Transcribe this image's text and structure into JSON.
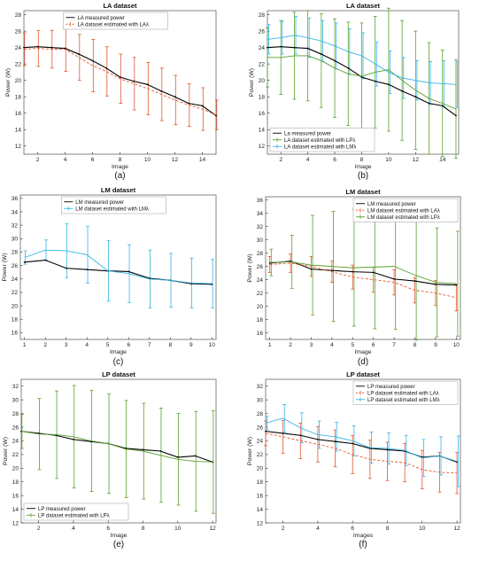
{
  "colors": {
    "measured": "#000000",
    "la": "#e4572e",
    "lp": "#5aa02c",
    "lm": "#35b5e8",
    "axis": "#222222",
    "box": "#666666"
  },
  "chart_data": [
    {
      "caption": "(a)",
      "type": "line",
      "title": "LA dataset",
      "xlabel": "Image",
      "ylabel": "Power (W)",
      "xlim": [
        1,
        15
      ],
      "ylim": [
        11,
        28.5
      ],
      "xticks": [
        2,
        4,
        6,
        8,
        10,
        12,
        14
      ],
      "yticks": [
        12,
        14,
        16,
        18,
        20,
        22,
        24,
        26,
        28
      ],
      "legend_position": "top-center",
      "x": [
        1,
        2,
        3,
        4,
        5,
        6,
        7,
        8,
        9,
        10,
        11,
        12,
        13,
        14,
        15
      ],
      "series": [
        {
          "name": "LA measured power",
          "color_key": "measured",
          "style": "solid",
          "marker": "dot",
          "values": [
            24.0,
            24.1,
            24.0,
            23.9,
            23.2,
            22.4,
            21.5,
            20.4,
            19.9,
            19.5,
            18.7,
            18.0,
            17.2,
            16.9,
            15.7
          ]
        },
        {
          "name": "LA dataset estimated with LAλ",
          "color_key": "la",
          "style": "dashed",
          "marker": "none",
          "values": [
            23.8,
            23.9,
            23.8,
            23.8,
            22.8,
            21.8,
            21.1,
            20.2,
            19.6,
            19.0,
            18.3,
            17.6,
            17.0,
            16.5,
            15.8
          ],
          "errors": [
            2.0,
            2.2,
            2.3,
            2.7,
            2.8,
            3.2,
            3.0,
            3.0,
            3.2,
            3.2,
            3.2,
            3.0,
            2.6,
            2.6,
            1.8
          ]
        }
      ]
    },
    {
      "caption": "(b)",
      "type": "line",
      "title": "LA dataset",
      "xlabel": "Image",
      "ylabel": "Power (W)",
      "xlim": [
        1,
        15.2
      ],
      "ylim": [
        11,
        28.5
      ],
      "xticks": [
        2,
        4,
        6,
        8,
        10,
        12,
        14
      ],
      "yticks": [
        12,
        14,
        16,
        18,
        20,
        22,
        24,
        26,
        28
      ],
      "legend_position": "bottom-left",
      "x": [
        1,
        2,
        3,
        4,
        5,
        6,
        7,
        8,
        9,
        10,
        11,
        12,
        13,
        14,
        15
      ],
      "series": [
        {
          "name": "La measured power",
          "color_key": "measured",
          "style": "solid",
          "marker": "dot",
          "values": [
            24.0,
            24.1,
            24.0,
            23.9,
            23.2,
            22.4,
            21.5,
            20.4,
            19.9,
            19.5,
            18.7,
            18.0,
            17.2,
            16.9,
            15.7
          ]
        },
        {
          "name": "LA dataset estimated with LPλ",
          "color_key": "lp",
          "style": "solid",
          "marker": "none",
          "values": [
            22.8,
            22.8,
            23.0,
            23.0,
            22.4,
            21.5,
            20.8,
            20.5,
            21.0,
            21.3,
            20.0,
            18.8,
            17.8,
            17.2,
            16.5
          ],
          "errors": [
            3.6,
            4.5,
            5.3,
            5.5,
            5.7,
            6.0,
            6.3,
            6.5,
            6.8,
            7.5,
            7.3,
            7.2,
            6.8,
            6.5,
            6.0
          ]
        },
        {
          "name": "LA dataset estimated with LMλ",
          "color_key": "lm",
          "style": "solid",
          "marker": "none",
          "values": [
            25.0,
            25.2,
            25.5,
            25.2,
            24.8,
            24.2,
            23.5,
            23.0,
            22.0,
            21.0,
            20.3,
            20.0,
            19.7,
            19.6,
            19.5
          ],
          "errors": [
            1.8,
            2.0,
            2.3,
            2.4,
            2.5,
            2.8,
            2.8,
            2.8,
            2.7,
            2.6,
            2.5,
            2.4,
            2.6,
            2.8,
            2.8
          ]
        }
      ]
    },
    {
      "caption": "(c)",
      "type": "line",
      "title": "LM dataset",
      "xlabel": "Image",
      "ylabel": "Power (W)",
      "xlim": [
        0.8,
        10.2
      ],
      "ylim": [
        15,
        36.5
      ],
      "xticks": [
        1,
        2,
        3,
        4,
        5,
        6,
        7,
        8,
        9,
        10
      ],
      "yticks": [
        16,
        18,
        20,
        22,
        24,
        26,
        28,
        30,
        32,
        34,
        36
      ],
      "legend_position": "top-center",
      "x": [
        1,
        2,
        3,
        4,
        5,
        6,
        7,
        8,
        9,
        10
      ],
      "series": [
        {
          "name": "LM measured power",
          "color_key": "measured",
          "style": "solid",
          "marker": "dot",
          "values": [
            26.5,
            26.8,
            25.6,
            25.4,
            25.2,
            25.1,
            24.1,
            23.8,
            23.3,
            23.2
          ]
        },
        {
          "name": "LM dataset estimated with LMλ",
          "color_key": "lm",
          "style": "solid",
          "marker": "none",
          "values": [
            27.2,
            28.3,
            28.2,
            27.6,
            25.2,
            24.8,
            24.0,
            23.8,
            23.4,
            23.3
          ],
          "errors": [
            1.0,
            1.5,
            4.0,
            4.2,
            4.5,
            4.3,
            4.3,
            4.0,
            3.7,
            3.6
          ]
        }
      ]
    },
    {
      "caption": "(d)",
      "type": "line",
      "title": "LM dataset",
      "xlabel": "Image",
      "ylabel": "Power (W)",
      "xlim": [
        0.8,
        10.2
      ],
      "ylim": [
        15,
        36.5
      ],
      "xticks": [
        1,
        2,
        3,
        4,
        5,
        6,
        7,
        8,
        9,
        10
      ],
      "yticks": [
        16,
        18,
        20,
        22,
        24,
        26,
        28,
        30,
        32,
        34,
        36
      ],
      "legend_position": "top-right",
      "x": [
        1,
        2,
        3,
        4,
        5,
        6,
        7,
        8,
        9,
        10
      ],
      "series": [
        {
          "name": "LM measured power",
          "color_key": "measured",
          "style": "solid",
          "marker": "dot",
          "values": [
            26.5,
            26.8,
            25.6,
            25.4,
            25.2,
            25.1,
            24.1,
            23.8,
            23.3,
            23.2
          ]
        },
        {
          "name": "LM dataset estimated with LAλ",
          "color_key": "la",
          "style": "dashed",
          "marker": "none",
          "values": [
            26.3,
            26.5,
            26.0,
            25.2,
            24.4,
            24.0,
            23.6,
            22.4,
            22.0,
            21.3
          ],
          "errors": [
            1.2,
            1.4,
            1.5,
            1.6,
            1.8,
            1.9,
            1.9,
            1.9,
            1.9,
            2.0
          ]
        },
        {
          "name": "LM dataset estimated with LPλ",
          "color_key": "lp",
          "style": "solid",
          "marker": "none",
          "values": [
            26.6,
            26.7,
            26.2,
            26.0,
            25.8,
            25.9,
            26.0,
            24.7,
            23.6,
            23.4
          ],
          "errors": [
            2.0,
            4.0,
            7.5,
            8.3,
            8.8,
            9.3,
            9.5,
            9.8,
            8.2,
            7.9
          ]
        }
      ]
    },
    {
      "caption": "(e)",
      "type": "line",
      "title": "LP dataset",
      "xlabel": "Image",
      "ylabel": "Power (W)",
      "xlim": [
        1,
        12.2
      ],
      "ylim": [
        12,
        33
      ],
      "xticks": [
        2,
        4,
        6,
        8,
        10,
        12
      ],
      "yticks": [
        12,
        14,
        16,
        18,
        20,
        22,
        24,
        26,
        28,
        30,
        32
      ],
      "legend_position": "bottom-left",
      "x": [
        1,
        2,
        3,
        4,
        5,
        6,
        7,
        8,
        9,
        10,
        11,
        12
      ],
      "series": [
        {
          "name": "LP measured power",
          "color_key": "measured",
          "style": "solid",
          "marker": "dot",
          "values": [
            25.4,
            25.1,
            24.8,
            24.2,
            23.9,
            23.6,
            22.9,
            22.7,
            22.5,
            21.6,
            21.8,
            20.9
          ]
        },
        {
          "name": "LP dataset estimated with LPλ",
          "color_key": "lp",
          "style": "solid",
          "marker": "none",
          "values": [
            25.4,
            25.0,
            24.9,
            24.6,
            24.0,
            23.6,
            22.8,
            22.5,
            21.9,
            21.3,
            21.0,
            20.9
          ],
          "errors": [
            2.5,
            5.2,
            6.4,
            7.5,
            7.4,
            7.3,
            7.1,
            7.0,
            6.9,
            6.7,
            7.3,
            7.5
          ]
        }
      ]
    },
    {
      "caption": "(f)",
      "type": "line",
      "title": "LP dataset",
      "xlabel": "Images",
      "ylabel": "Power (W)",
      "xlim": [
        1,
        12.2
      ],
      "ylim": [
        12,
        33
      ],
      "xticks": [
        2,
        4,
        6,
        8,
        10,
        12
      ],
      "yticks": [
        12,
        14,
        16,
        18,
        20,
        22,
        24,
        26,
        28,
        30,
        32
      ],
      "legend_position": "top-right",
      "x": [
        1,
        2,
        3,
        4,
        5,
        6,
        7,
        8,
        9,
        10,
        11,
        12
      ],
      "series": [
        {
          "name": "LP measured power",
          "color_key": "measured",
          "style": "solid",
          "marker": "dot",
          "values": [
            25.4,
            25.1,
            24.8,
            24.2,
            23.9,
            23.6,
            22.9,
            22.7,
            22.5,
            21.6,
            21.8,
            20.9
          ]
        },
        {
          "name": "LP dataset estimated with LAλ",
          "color_key": "la",
          "style": "dashed",
          "marker": "none",
          "values": [
            25.1,
            24.6,
            24.0,
            23.5,
            22.9,
            22.0,
            21.3,
            21.0,
            20.8,
            19.8,
            19.4,
            19.3
          ],
          "errors": [
            1.8,
            2.4,
            2.6,
            2.6,
            2.7,
            2.8,
            2.8,
            2.8,
            2.8,
            2.8,
            2.9,
            3.0
          ]
        },
        {
          "name": "LP dataset estimated with LMλ",
          "color_key": "lm",
          "style": "solid",
          "marker": "none",
          "values": [
            26.6,
            27.3,
            25.9,
            24.9,
            24.6,
            24.0,
            23.0,
            22.9,
            22.6,
            21.5,
            21.8,
            21.0
          ],
          "errors": [
            1.0,
            2.0,
            2.2,
            2.0,
            2.1,
            2.2,
            2.3,
            2.3,
            2.2,
            2.7,
            2.8,
            3.7
          ]
        }
      ]
    }
  ]
}
